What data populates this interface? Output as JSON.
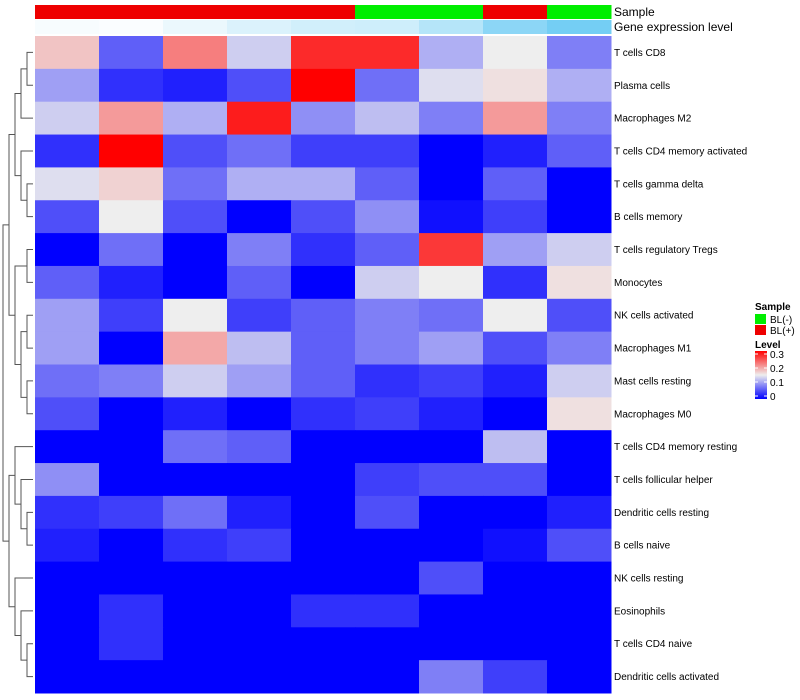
{
  "chart_data": {
    "type": "heatmap",
    "annotation_labels": [
      "Sample",
      "Gene expression level"
    ],
    "columns": [
      {
        "sample": "BL(+)",
        "expression": 0.05
      },
      {
        "sample": "BL(+)",
        "expression": 0.03
      },
      {
        "sample": "BL(+)",
        "expression": 0.12
      },
      {
        "sample": "BL(+)",
        "expression": 0.22
      },
      {
        "sample": "BL(+)",
        "expression": 0.28
      },
      {
        "sample": "BL(-)",
        "expression": 0.3
      },
      {
        "sample": "BL(-)",
        "expression": 0.45
      },
      {
        "sample": "BL(+)",
        "expression": 0.7
      },
      {
        "sample": "BL(-)",
        "expression": 0.85
      }
    ],
    "rows": [
      "T cells CD8",
      "Plasma cells",
      "Macrophages M2",
      "T cells CD4 memory activated",
      "T cells gamma delta",
      "B cells memory",
      "T cells regulatory  Tregs",
      "Monocytes",
      "NK cells activated",
      "Macrophages M1",
      "Mast cells resting",
      "Macrophages M0",
      "T cells CD4 memory resting",
      "T cells follicular helper",
      "Dendritic cells resting",
      "B cells naive",
      "NK cells resting",
      "Eosinophils",
      "T cells CD4 naive",
      "Dendritic cells activated"
    ],
    "values": [
      [
        0.18,
        0.06,
        0.23,
        0.13,
        0.29,
        0.29,
        0.11,
        0.15,
        0.08
      ],
      [
        0.1,
        0.03,
        0.02,
        0.05,
        0.32,
        0.07,
        0.14,
        0.16,
        0.11
      ],
      [
        0.13,
        0.21,
        0.11,
        0.3,
        0.09,
        0.12,
        0.08,
        0.21,
        0.08
      ],
      [
        0.03,
        0.32,
        0.05,
        0.07,
        0.04,
        0.04,
        0.0,
        0.02,
        0.06
      ],
      [
        0.14,
        0.17,
        0.07,
        0.11,
        0.11,
        0.06,
        0.0,
        0.06,
        0.0
      ],
      [
        0.05,
        0.15,
        0.05,
        0.0,
        0.05,
        0.09,
        0.01,
        0.04,
        0.0
      ],
      [
        0.0,
        0.07,
        0.0,
        0.08,
        0.03,
        0.06,
        0.28,
        0.1,
        0.13
      ],
      [
        0.06,
        0.02,
        0.0,
        0.06,
        0.0,
        0.13,
        0.15,
        0.03,
        0.16
      ],
      [
        0.1,
        0.04,
        0.15,
        0.04,
        0.06,
        0.08,
        0.07,
        0.15,
        0.05
      ],
      [
        0.1,
        0.0,
        0.2,
        0.12,
        0.06,
        0.08,
        0.1,
        0.05,
        0.08
      ],
      [
        0.07,
        0.08,
        0.13,
        0.1,
        0.06,
        0.03,
        0.04,
        0.02,
        0.13
      ],
      [
        0.05,
        0.0,
        0.02,
        0.0,
        0.03,
        0.04,
        0.02,
        0.0,
        0.16
      ],
      [
        0.0,
        0.0,
        0.07,
        0.06,
        0.0,
        0.0,
        0.0,
        0.12,
        0.0
      ],
      [
        0.09,
        0.0,
        0.0,
        0.0,
        0.0,
        0.04,
        0.05,
        0.05,
        0.0
      ],
      [
        0.03,
        0.04,
        0.07,
        0.02,
        0.0,
        0.05,
        0.0,
        0.0,
        0.02
      ],
      [
        0.02,
        0.0,
        0.03,
        0.04,
        0.0,
        0.0,
        0.0,
        0.01,
        0.05
      ],
      [
        0.0,
        0.0,
        0.0,
        0.0,
        0.0,
        0.0,
        0.05,
        0.0,
        0.0
      ],
      [
        0.0,
        0.03,
        0.0,
        0.0,
        0.03,
        0.03,
        0.0,
        0.0,
        0.0
      ],
      [
        0.0,
        0.03,
        0.0,
        0.0,
        0.0,
        0.0,
        0.0,
        0.0,
        0.0
      ],
      [
        0.0,
        0.0,
        0.0,
        0.0,
        0.0,
        0.0,
        0.08,
        0.04,
        0.0
      ]
    ],
    "legend": {
      "sample_title": "Sample",
      "sample_entries": [
        {
          "label": "BL(-)",
          "color": "#00ee00"
        },
        {
          "label": "BL(+)",
          "color": "#ee0000"
        }
      ],
      "level_title": "Level",
      "level_ticks": [
        "0.3",
        "0.2",
        "0.1",
        "0"
      ]
    },
    "color_scale": {
      "low": "#0000ff",
      "mid": "#eeeeee",
      "high": "#ff0000",
      "min": 0,
      "mid_value": 0.15,
      "max": 0.32
    },
    "expression_scale": {
      "low": "#ffffff",
      "high": "#5bc5f2"
    }
  }
}
